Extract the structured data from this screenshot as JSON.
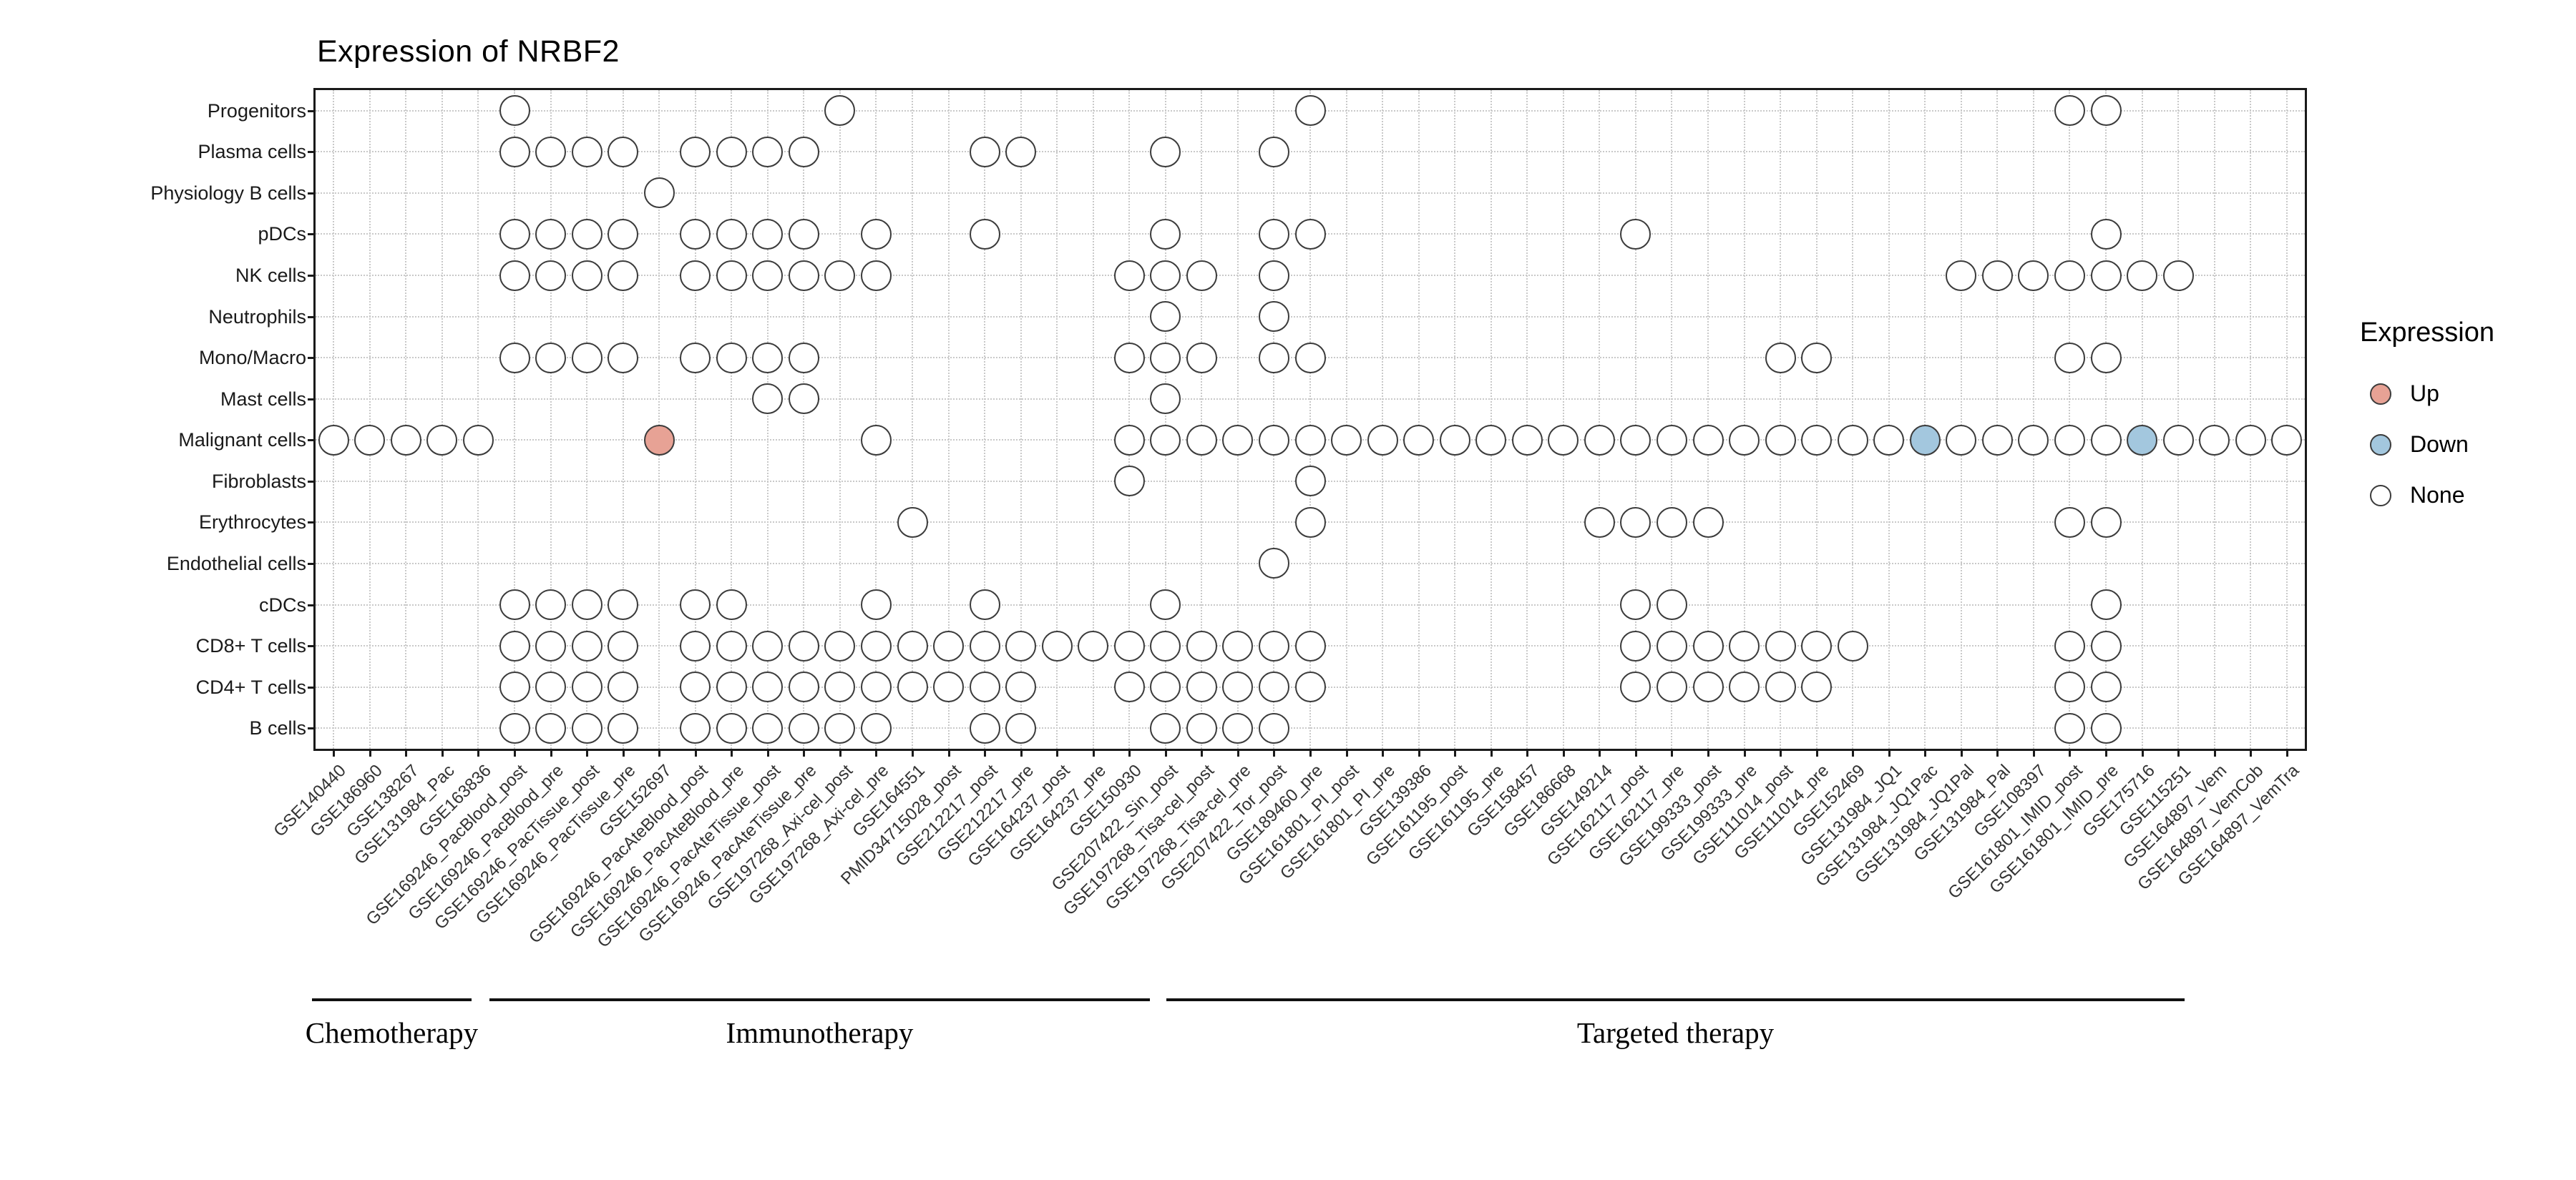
{
  "title": "Expression of NRBF2",
  "legend": {
    "title": "Expression",
    "items": [
      {
        "label": "Up",
        "color": "#e7a295"
      },
      {
        "label": "Down",
        "color": "#a3c7de"
      },
      {
        "label": "None",
        "color": "#ffffff"
      }
    ]
  },
  "chart_data": {
    "type": "scatter",
    "subtype": "categorical dot matrix (expression presence plot)",
    "title": "Expression of NRBF2",
    "xlabel": "",
    "ylabel": "",
    "grid": true,
    "legend_position": "right",
    "colors": {
      "up": "#e7a295",
      "down": "#a3c7de",
      "none": "#ffffff",
      "stroke": "#3b3b3b",
      "grid": "#c9c9c9"
    },
    "rows": [
      "Progenitors",
      "Plasma cells",
      "Physiology B cells",
      "pDCs",
      "NK cells",
      "Neutrophils",
      "Mono/Macro",
      "Mast cells",
      "Malignant cells",
      "Fibroblasts",
      "Erythrocytes",
      "Endothelial cells",
      "cDCs",
      "CD8+ T cells",
      "CD4+ T cells",
      "B cells"
    ],
    "columns": [
      "GSE140440",
      "GSE186960",
      "GSE138267",
      "GSE131984_Pac",
      "GSE163836",
      "GSE169246_PacBlood_post",
      "GSE169246_PacBlood_pre",
      "GSE169246_PacTissue_post",
      "GSE169246_PacTissue_pre",
      "GSE152697",
      "GSE169246_PacAteBlood_post",
      "GSE169246_PacAteBlood_pre",
      "GSE169246_PacAteTissue_post",
      "GSE169246_PacAteTissue_pre",
      "GSE197268_Axi-cel_post",
      "GSE197268_Axi-cel_pre",
      "GSE164551",
      "PMID34715028_post",
      "GSE212217_post",
      "GSE212217_pre",
      "GSE164237_post",
      "GSE164237_pre",
      "GSE150930",
      "GSE207422_Sin_post",
      "GSE197268_Tisa-cel_post",
      "GSE197268_Tisa-cel_pre",
      "GSE207422_Tor_post",
      "GSE189460_pre",
      "GSE161801_PI_post",
      "GSE161801_PI_pre",
      "GSE139386",
      "GSE161195_post",
      "GSE161195_pre",
      "GSE158457",
      "GSE186668",
      "GSE149214",
      "GSE162117_post",
      "GSE162117_pre",
      "GSE199333_post",
      "GSE199333_pre",
      "GSE111014_post",
      "GSE111014_pre",
      "GSE152469",
      "GSE131984_JQ1",
      "GSE131984_JQ1Pac",
      "GSE131984_JQ1Pal",
      "GSE131984_Pal",
      "GSE108397",
      "GSE161801_IMID_post",
      "GSE161801_IMID_pre",
      "GSE175716",
      "GSE115251",
      "GSE164897_Vem",
      "GSE164897_VemCob",
      "GSE164897_VemTra"
    ],
    "groups": [
      {
        "label": "Chemotherapy",
        "columns": [
          1,
          5
        ]
      },
      {
        "label": "Immunotherapy",
        "columns": [
          6,
          26
        ]
      },
      {
        "label": "Targeted therapy",
        "columns": [
          27,
          55
        ]
      }
    ],
    "points": [
      {
        "row": "Progenitors",
        "cols": [
          6,
          15,
          28,
          49,
          50
        ]
      },
      {
        "row": "Plasma cells",
        "cols": [
          6,
          7,
          8,
          9,
          11,
          12,
          13,
          14,
          19,
          20,
          24,
          27
        ]
      },
      {
        "row": "Physiology B cells",
        "cols": [
          10
        ]
      },
      {
        "row": "pDCs",
        "cols": [
          6,
          7,
          8,
          9,
          11,
          12,
          13,
          14,
          16,
          19,
          24,
          27,
          28,
          37,
          50
        ]
      },
      {
        "row": "NK cells",
        "cols": [
          6,
          7,
          8,
          9,
          11,
          12,
          13,
          14,
          15,
          16,
          23,
          24,
          25,
          27,
          46,
          47,
          48,
          49,
          50,
          51,
          52
        ]
      },
      {
        "row": "Neutrophils",
        "cols": [
          24,
          27
        ]
      },
      {
        "row": "Mono/Macro",
        "cols": [
          6,
          7,
          8,
          9,
          11,
          12,
          13,
          14,
          23,
          24,
          25,
          27,
          28,
          41,
          42,
          49,
          50
        ]
      },
      {
        "row": "Mast cells",
        "cols": [
          13,
          14,
          24
        ]
      },
      {
        "row": "Malignant cells",
        "cols": [
          1,
          2,
          3,
          4,
          5,
          10,
          16,
          23,
          24,
          25,
          26,
          27,
          28,
          29,
          30,
          31,
          32,
          33,
          34,
          35,
          36,
          37,
          38,
          39,
          40,
          41,
          42,
          43,
          44,
          45,
          46,
          47,
          48,
          49,
          50,
          51,
          52,
          53,
          54,
          55
        ]
      },
      {
        "row": "Fibroblasts",
        "cols": [
          23,
          28
        ]
      },
      {
        "row": "Erythrocytes",
        "cols": [
          17,
          28,
          36,
          37,
          38,
          39,
          49,
          50
        ]
      },
      {
        "row": "Endothelial cells",
        "cols": [
          27
        ]
      },
      {
        "row": "cDCs",
        "cols": [
          6,
          7,
          8,
          9,
          11,
          12,
          16,
          19,
          24,
          37,
          38,
          50
        ]
      },
      {
        "row": "CD8+ T cells",
        "cols": [
          6,
          7,
          8,
          9,
          11,
          12,
          13,
          14,
          15,
          16,
          17,
          18,
          19,
          20,
          21,
          22,
          23,
          24,
          25,
          26,
          27,
          28,
          37,
          38,
          39,
          40,
          41,
          42,
          43,
          49,
          50
        ]
      },
      {
        "row": "CD4+ T cells",
        "cols": [
          6,
          7,
          8,
          9,
          11,
          12,
          13,
          14,
          15,
          16,
          17,
          18,
          19,
          20,
          23,
          24,
          25,
          26,
          27,
          28,
          37,
          38,
          39,
          40,
          41,
          42,
          49,
          50
        ]
      },
      {
        "row": "B cells",
        "cols": [
          6,
          7,
          8,
          9,
          11,
          12,
          13,
          14,
          15,
          16,
          19,
          20,
          24,
          25,
          26,
          27,
          49,
          50
        ]
      }
    ],
    "highlights": [
      {
        "row": "Malignant cells",
        "col": 10,
        "state": "Up"
      },
      {
        "row": "Malignant cells",
        "col": 45,
        "state": "Down"
      },
      {
        "row": "Malignant cells",
        "col": 51,
        "state": "Down"
      }
    ]
  }
}
